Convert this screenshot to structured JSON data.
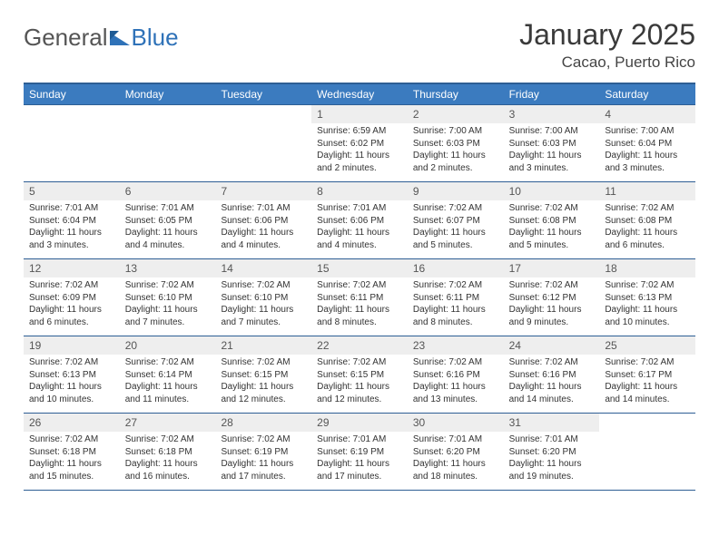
{
  "brand": {
    "part1": "General",
    "part2": "Blue"
  },
  "title": "January 2025",
  "location": "Cacao, Puerto Rico",
  "accent_color": "#3b7bbf",
  "border_color": "#2d5e94",
  "daynum_bg": "#eeeeee",
  "text_color": "#333333",
  "day_headers": [
    "Sunday",
    "Monday",
    "Tuesday",
    "Wednesday",
    "Thursday",
    "Friday",
    "Saturday"
  ],
  "weeks": [
    [
      null,
      null,
      null,
      {
        "n": "1",
        "sr": "6:59 AM",
        "ss": "6:02 PM",
        "dl": "11 hours and 2 minutes."
      },
      {
        "n": "2",
        "sr": "7:00 AM",
        "ss": "6:03 PM",
        "dl": "11 hours and 2 minutes."
      },
      {
        "n": "3",
        "sr": "7:00 AM",
        "ss": "6:03 PM",
        "dl": "11 hours and 3 minutes."
      },
      {
        "n": "4",
        "sr": "7:00 AM",
        "ss": "6:04 PM",
        "dl": "11 hours and 3 minutes."
      }
    ],
    [
      {
        "n": "5",
        "sr": "7:01 AM",
        "ss": "6:04 PM",
        "dl": "11 hours and 3 minutes."
      },
      {
        "n": "6",
        "sr": "7:01 AM",
        "ss": "6:05 PM",
        "dl": "11 hours and 4 minutes."
      },
      {
        "n": "7",
        "sr": "7:01 AM",
        "ss": "6:06 PM",
        "dl": "11 hours and 4 minutes."
      },
      {
        "n": "8",
        "sr": "7:01 AM",
        "ss": "6:06 PM",
        "dl": "11 hours and 4 minutes."
      },
      {
        "n": "9",
        "sr": "7:02 AM",
        "ss": "6:07 PM",
        "dl": "11 hours and 5 minutes."
      },
      {
        "n": "10",
        "sr": "7:02 AM",
        "ss": "6:08 PM",
        "dl": "11 hours and 5 minutes."
      },
      {
        "n": "11",
        "sr": "7:02 AM",
        "ss": "6:08 PM",
        "dl": "11 hours and 6 minutes."
      }
    ],
    [
      {
        "n": "12",
        "sr": "7:02 AM",
        "ss": "6:09 PM",
        "dl": "11 hours and 6 minutes."
      },
      {
        "n": "13",
        "sr": "7:02 AM",
        "ss": "6:10 PM",
        "dl": "11 hours and 7 minutes."
      },
      {
        "n": "14",
        "sr": "7:02 AM",
        "ss": "6:10 PM",
        "dl": "11 hours and 7 minutes."
      },
      {
        "n": "15",
        "sr": "7:02 AM",
        "ss": "6:11 PM",
        "dl": "11 hours and 8 minutes."
      },
      {
        "n": "16",
        "sr": "7:02 AM",
        "ss": "6:11 PM",
        "dl": "11 hours and 8 minutes."
      },
      {
        "n": "17",
        "sr": "7:02 AM",
        "ss": "6:12 PM",
        "dl": "11 hours and 9 minutes."
      },
      {
        "n": "18",
        "sr": "7:02 AM",
        "ss": "6:13 PM",
        "dl": "11 hours and 10 minutes."
      }
    ],
    [
      {
        "n": "19",
        "sr": "7:02 AM",
        "ss": "6:13 PM",
        "dl": "11 hours and 10 minutes."
      },
      {
        "n": "20",
        "sr": "7:02 AM",
        "ss": "6:14 PM",
        "dl": "11 hours and 11 minutes."
      },
      {
        "n": "21",
        "sr": "7:02 AM",
        "ss": "6:15 PM",
        "dl": "11 hours and 12 minutes."
      },
      {
        "n": "22",
        "sr": "7:02 AM",
        "ss": "6:15 PM",
        "dl": "11 hours and 12 minutes."
      },
      {
        "n": "23",
        "sr": "7:02 AM",
        "ss": "6:16 PM",
        "dl": "11 hours and 13 minutes."
      },
      {
        "n": "24",
        "sr": "7:02 AM",
        "ss": "6:16 PM",
        "dl": "11 hours and 14 minutes."
      },
      {
        "n": "25",
        "sr": "7:02 AM",
        "ss": "6:17 PM",
        "dl": "11 hours and 14 minutes."
      }
    ],
    [
      {
        "n": "26",
        "sr": "7:02 AM",
        "ss": "6:18 PM",
        "dl": "11 hours and 15 minutes."
      },
      {
        "n": "27",
        "sr": "7:02 AM",
        "ss": "6:18 PM",
        "dl": "11 hours and 16 minutes."
      },
      {
        "n": "28",
        "sr": "7:02 AM",
        "ss": "6:19 PM",
        "dl": "11 hours and 17 minutes."
      },
      {
        "n": "29",
        "sr": "7:01 AM",
        "ss": "6:19 PM",
        "dl": "11 hours and 17 minutes."
      },
      {
        "n": "30",
        "sr": "7:01 AM",
        "ss": "6:20 PM",
        "dl": "11 hours and 18 minutes."
      },
      {
        "n": "31",
        "sr": "7:01 AM",
        "ss": "6:20 PM",
        "dl": "11 hours and 19 minutes."
      },
      null
    ]
  ],
  "labels": {
    "sunrise": "Sunrise: ",
    "sunset": "Sunset: ",
    "daylight": "Daylight: "
  }
}
